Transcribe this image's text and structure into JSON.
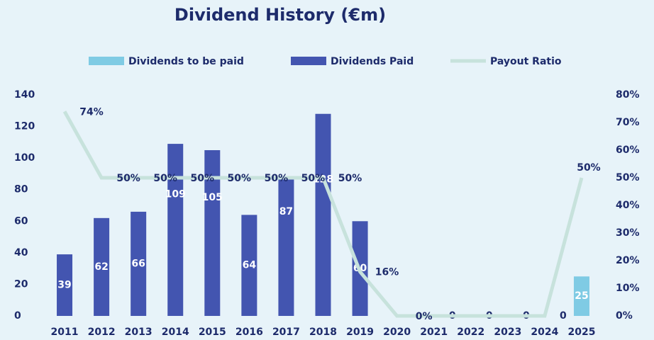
{
  "chart_data": {
    "type": "bar",
    "title": "Dividend History (€m)",
    "categories": [
      "2011",
      "2012",
      "2013",
      "2014",
      "2015",
      "2016",
      "2017",
      "2018",
      "2019",
      "2020",
      "2021",
      "2022",
      "2023",
      "2024",
      "2025"
    ],
    "series": [
      {
        "name": "Dividends to be paid",
        "type": "bar",
        "color": "#7fcbe4",
        "values": [
          null,
          null,
          null,
          null,
          null,
          null,
          null,
          null,
          null,
          null,
          null,
          null,
          null,
          null,
          25
        ]
      },
      {
        "name": "Dividends Paid",
        "type": "bar",
        "color": "#4355b0",
        "values": [
          39,
          62,
          66,
          109,
          105,
          64,
          87,
          128,
          60,
          0,
          0,
          0,
          0,
          0,
          null
        ],
        "value_labels": [
          "39",
          "62",
          "66",
          "109",
          "105",
          "64",
          "87",
          "128",
          "60",
          null,
          "0",
          "0",
          "0",
          "0",
          null
        ]
      },
      {
        "name": "Payout Ratio",
        "type": "line",
        "axis": "y2",
        "color": "#c7e2dc",
        "values": [
          74,
          50,
          50,
          50,
          50,
          50,
          50,
          50,
          16,
          0,
          0,
          0,
          0,
          0,
          50
        ],
        "value_labels": [
          "74%",
          "50%",
          "50%",
          "50%",
          "50%",
          "50%",
          "50%",
          "50%",
          "16%",
          "0%",
          null,
          null,
          null,
          null,
          "50%"
        ]
      }
    ],
    "ylim": [
      0,
      140
    ],
    "yticks": [
      0,
      20,
      40,
      60,
      80,
      100,
      120,
      140
    ],
    "y2lim": [
      0,
      80
    ],
    "y2ticks": [
      {
        "value": 0,
        "label": "0%"
      },
      {
        "value": 10,
        "label": "10%"
      },
      {
        "value": 20,
        "label": "20%"
      },
      {
        "value": 30,
        "label": "30%"
      },
      {
        "value": 40,
        "label": "40%"
      },
      {
        "value": 50,
        "label": "50%"
      },
      {
        "value": 60,
        "label": "60%"
      },
      {
        "value": 70,
        "label": "70%"
      },
      {
        "value": 80,
        "label": "80%"
      }
    ],
    "legend": "top"
  }
}
